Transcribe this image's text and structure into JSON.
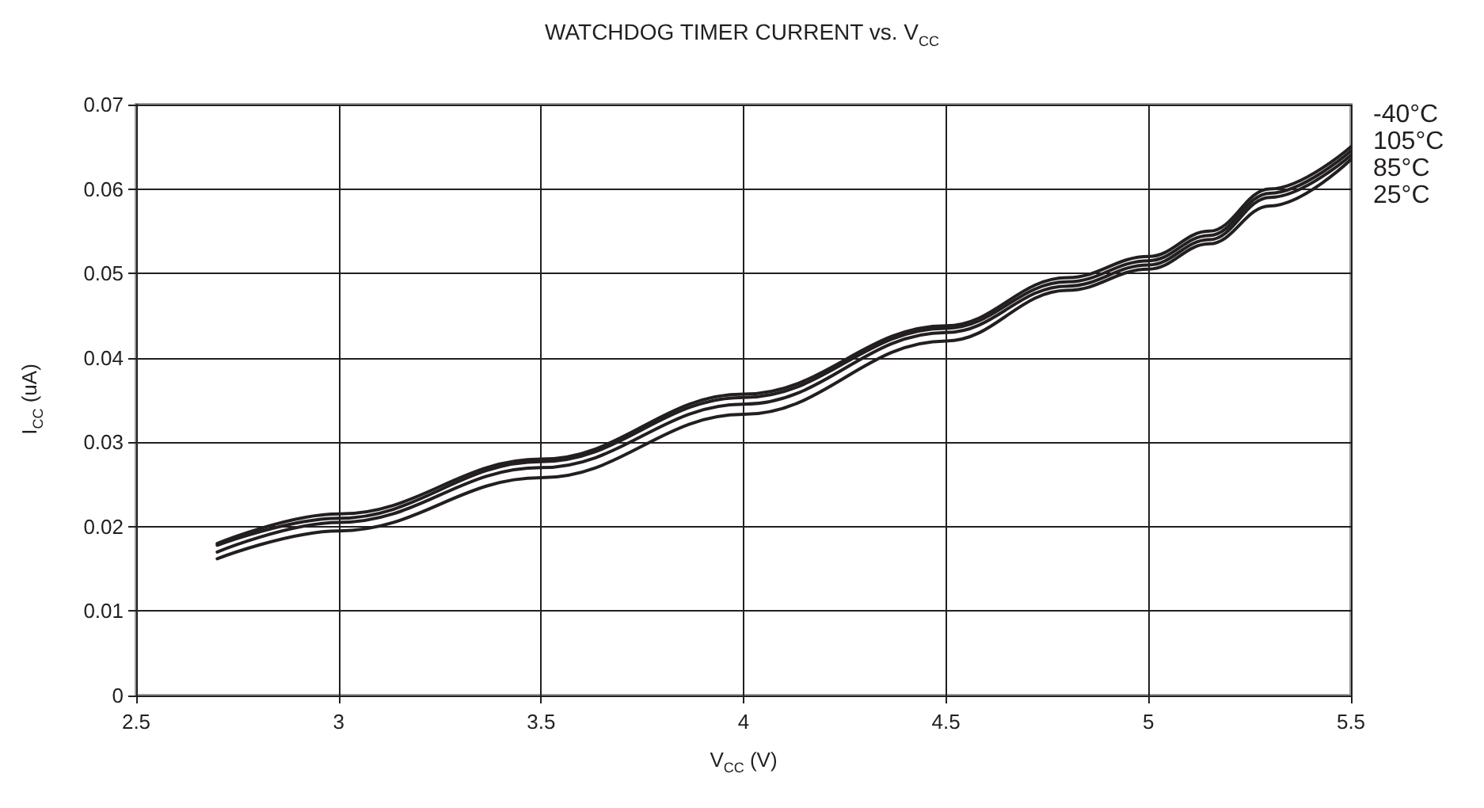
{
  "chart_data": {
    "type": "line",
    "title": "WATCHDOG TIMER CURRENT vs. V$_{CC}$",
    "xlabel": "V$_{CC}$ (V)",
    "ylabel": "I$_{CC}$ (uA)",
    "x": [
      2.7,
      3,
      3.5,
      4,
      4.5,
      4.8,
      5,
      5.15,
      5.3,
      5.5
    ],
    "series": [
      {
        "name": "-40°C",
        "color": "#231f20",
        "values": [
          0.018,
          0.0215,
          0.028,
          0.0357,
          0.0438,
          0.0495,
          0.052,
          0.055,
          0.06,
          0.065
        ]
      },
      {
        "name": "105°C",
        "color": "#231f20",
        "values": [
          0.0178,
          0.021,
          0.0277,
          0.0353,
          0.0435,
          0.049,
          0.0515,
          0.0545,
          0.0595,
          0.0645
        ]
      },
      {
        "name": "85°C",
        "color": "#231f20",
        "values": [
          0.017,
          0.0205,
          0.027,
          0.0345,
          0.043,
          0.0485,
          0.051,
          0.054,
          0.059,
          0.064
        ]
      },
      {
        "name": "25°C",
        "color": "#231f20",
        "values": [
          0.0162,
          0.0195,
          0.0258,
          0.0333,
          0.042,
          0.048,
          0.0505,
          0.0535,
          0.058,
          0.0635
        ]
      }
    ],
    "xlim": [
      2.5,
      5.5
    ],
    "xticks": [
      2.5,
      3,
      3.5,
      4,
      4.5,
      5,
      5.5
    ],
    "ylim": [
      0,
      0.07
    ],
    "yticks": [
      0,
      0.01,
      0.02,
      0.03,
      0.04,
      0.05,
      0.06,
      0.07
    ],
    "grid": true,
    "marker": "none",
    "line_style": "solid",
    "legend": false
  }
}
